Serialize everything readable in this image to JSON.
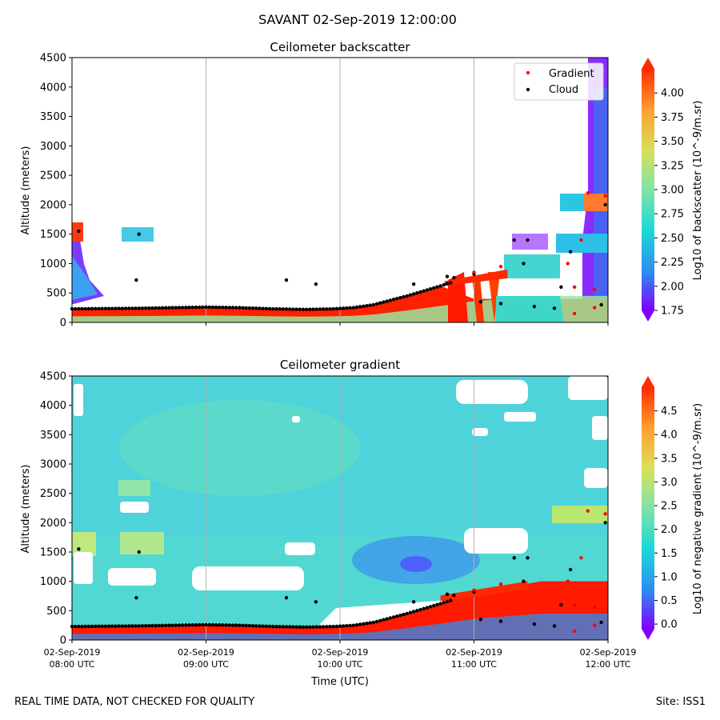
{
  "title": "SAVANT 02-Sep-2019 12:00:00",
  "footer": {
    "left": "REAL TIME DATA, NOT CHECKED FOR QUALITY",
    "right": "Site: ISS1"
  },
  "colors": {
    "gradient_marker": "#ff0000",
    "cloud_marker": "#000000",
    "colormap": [
      "#8000ff",
      "#2d8cf0",
      "#1ad9d9",
      "#7fe3a6",
      "#d9e05a",
      "#ffa030",
      "#ff2a00"
    ]
  },
  "chart_data": [
    {
      "type": "heatmap",
      "title": "Ceilometer backscatter",
      "ylabel": "Altitude (meters)",
      "ylim": [
        0,
        4500
      ],
      "yticks": [
        "0",
        "500",
        "1000",
        "1500",
        "2000",
        "2500",
        "3000",
        "3500",
        "4000",
        "4500"
      ],
      "xlim_hours": [
        8,
        12
      ],
      "grid": "vertical",
      "legend": {
        "placement": "top-right",
        "entries": [
          "Gradient",
          "Cloud"
        ]
      },
      "colorbar": {
        "label": "Log10 of backscatter (10^-9/m.sr)",
        "range": [
          1.75,
          4.25
        ],
        "ticks": [
          "1.75",
          "2.00",
          "2.25",
          "2.50",
          "2.75",
          "3.00",
          "3.25",
          "3.50",
          "3.75",
          "4.00"
        ]
      }
    },
    {
      "type": "heatmap",
      "title": "Ceilometer gradient",
      "ylabel": "Altitude (meters)",
      "xlabel": "Time (UTC)",
      "ylim": [
        0,
        4500
      ],
      "yticks": [
        "0",
        "500",
        "1000",
        "1500",
        "2000",
        "2500",
        "3000",
        "3500",
        "4000",
        "4500"
      ],
      "xlim_hours": [
        8,
        12
      ],
      "xticks": [
        {
          "hour": 8,
          "line1": "02-Sep-2019",
          "line2": "08:00 UTC"
        },
        {
          "hour": 9,
          "line1": "02-Sep-2019",
          "line2": "09:00 UTC"
        },
        {
          "hour": 10,
          "line1": "02-Sep-2019",
          "line2": "10:00 UTC"
        },
        {
          "hour": 11,
          "line1": "02-Sep-2019",
          "line2": "11:00 UTC"
        },
        {
          "hour": 12,
          "line1": "02-Sep-2019",
          "line2": "12:00 UTC"
        }
      ],
      "grid": "vertical",
      "colorbar": {
        "label": "Log10 of negative gradient (10^-9/m.sr)",
        "range": [
          -0.1,
          5.0
        ],
        "ticks": [
          "0.0",
          "0.5",
          "1.0",
          "1.5",
          "2.0",
          "2.5",
          "3.0",
          "3.5",
          "4.0",
          "4.5"
        ]
      }
    }
  ],
  "series": {
    "boundary_layer_top": {
      "hours": [
        8.0,
        8.25,
        8.5,
        8.75,
        9.0,
        9.25,
        9.5,
        9.75,
        9.95,
        10.1,
        10.25,
        10.5,
        10.75,
        11.0,
        11.25,
        11.5,
        11.75,
        12.0
      ],
      "altitude_m": [
        230,
        235,
        240,
        250,
        260,
        250,
        230,
        220,
        230,
        250,
        300,
        450,
        620,
        800,
        900,
        1000,
        1000,
        1000
      ]
    },
    "cloud_points": [
      {
        "hour": 8.05,
        "alt": 1550
      },
      {
        "hour": 8.5,
        "alt": 1500
      },
      {
        "hour": 8.48,
        "alt": 720
      },
      {
        "hour": 9.6,
        "alt": 720
      },
      {
        "hour": 9.82,
        "alt": 650
      },
      {
        "hour": 10.55,
        "alt": 650
      },
      {
        "hour": 10.8,
        "alt": 780
      },
      {
        "hour": 10.85,
        "alt": 760
      },
      {
        "hour": 11.0,
        "alt": 820
      },
      {
        "hour": 11.3,
        "alt": 1400
      },
      {
        "hour": 11.4,
        "alt": 1400
      },
      {
        "hour": 11.37,
        "alt": 1000
      },
      {
        "hour": 11.65,
        "alt": 600
      },
      {
        "hour": 11.72,
        "alt": 1200
      },
      {
        "hour": 11.98,
        "alt": 2000
      },
      {
        "hour": 11.05,
        "alt": 350
      },
      {
        "hour": 11.2,
        "alt": 320
      },
      {
        "hour": 11.45,
        "alt": 270
      },
      {
        "hour": 11.6,
        "alt": 240
      },
      {
        "hour": 11.95,
        "alt": 300
      }
    ],
    "gradient_points": [
      {
        "hour": 11.0,
        "alt": 850
      },
      {
        "hour": 11.2,
        "alt": 950
      },
      {
        "hour": 11.7,
        "alt": 1000
      },
      {
        "hour": 11.8,
        "alt": 1400
      },
      {
        "hour": 11.85,
        "alt": 2200
      },
      {
        "hour": 11.98,
        "alt": 2150
      },
      {
        "hour": 11.75,
        "alt": 600
      },
      {
        "hour": 11.9,
        "alt": 560
      },
      {
        "hour": 11.9,
        "alt": 250
      },
      {
        "hour": 11.75,
        "alt": 150
      }
    ]
  }
}
